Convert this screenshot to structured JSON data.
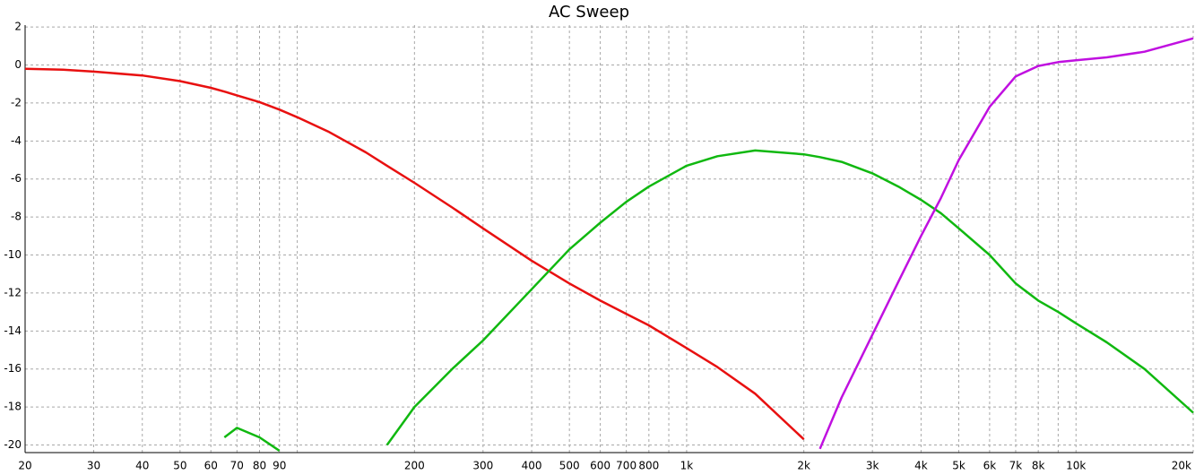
{
  "chart_data": {
    "type": "line",
    "title": "AC Sweep",
    "x": [
      20,
      25,
      30,
      40,
      50,
      60,
      65,
      70,
      80,
      90,
      100,
      120,
      150,
      170,
      200,
      250,
      300,
      400,
      500,
      600,
      700,
      800,
      1000,
      1200,
      1500,
      2000,
      2200,
      2500,
      3000,
      3500,
      4000,
      4500,
      5000,
      6000,
      7000,
      8000,
      9000,
      10000,
      12000,
      15000,
      20000
    ],
    "series": [
      {
        "color": "#e81010",
        "values": [
          -0.2,
          -0.25,
          -0.35,
          -0.55,
          -0.85,
          -1.2,
          -1.4,
          -1.6,
          -1.95,
          -2.35,
          -2.75,
          -3.5,
          -4.6,
          -5.3,
          -6.2,
          -7.5,
          -8.6,
          -10.3,
          -11.5,
          -12.4,
          -13.1,
          -13.7,
          -14.9,
          -15.9,
          -17.3,
          -19.7,
          null,
          null,
          null,
          null,
          null,
          null,
          null,
          null,
          null,
          null,
          null,
          null,
          null,
          null,
          null
        ]
      },
      {
        "color": "#10b810",
        "values": [
          null,
          null,
          null,
          null,
          null,
          null,
          -19.6,
          -19.1,
          -19.6,
          -20.3,
          null,
          null,
          null,
          -20.0,
          -18.0,
          -16.0,
          -14.5,
          -11.8,
          -9.7,
          -8.3,
          -7.2,
          -6.4,
          -5.3,
          -4.8,
          -4.5,
          -4.7,
          -4.85,
          -5.1,
          -5.7,
          -6.4,
          -7.1,
          -7.8,
          -8.6,
          -10.0,
          -11.5,
          -12.4,
          -13.0,
          -13.6,
          -14.6,
          -16.0,
          -18.3
        ]
      },
      {
        "color": "#c010e0",
        "values": [
          null,
          null,
          null,
          null,
          null,
          null,
          null,
          null,
          null,
          null,
          null,
          null,
          null,
          null,
          null,
          null,
          null,
          null,
          null,
          null,
          null,
          null,
          null,
          null,
          null,
          null,
          -20.2,
          -17.5,
          -14.2,
          -11.4,
          -9.0,
          -7.0,
          -5.0,
          -2.2,
          -0.6,
          -0.05,
          0.15,
          0.25,
          0.4,
          0.7,
          1.4
        ]
      }
    ],
    "xscale": "log",
    "xlim": [
      20,
      20000
    ],
    "ylim": [
      -20.4,
      2.1
    ],
    "xticks": [
      20,
      30,
      40,
      50,
      60,
      70,
      80,
      90,
      {
        "value": 100,
        "label": null
      },
      200,
      300,
      400,
      500,
      600,
      700,
      800,
      {
        "value": 900,
        "label": null
      },
      {
        "value": 1000,
        "label": "1k"
      },
      {
        "value": 2000,
        "label": "2k"
      },
      {
        "value": 3000,
        "label": "3k"
      },
      {
        "value": 4000,
        "label": "4k"
      },
      {
        "value": 5000,
        "label": "5k"
      },
      {
        "value": 6000,
        "label": "6k"
      },
      {
        "value": 7000,
        "label": "7k"
      },
      {
        "value": 8000,
        "label": "8k"
      },
      {
        "value": 9000,
        "label": null
      },
      {
        "value": 10000,
        "label": "10k"
      },
      {
        "value": 20000,
        "label": "20k"
      }
    ],
    "yticks": [
      2,
      0,
      -2,
      -4,
      -6,
      -8,
      -10,
      -12,
      -14,
      -16,
      -18,
      -20
    ],
    "grid": true
  }
}
